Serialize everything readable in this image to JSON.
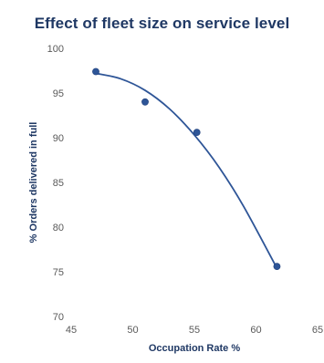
{
  "chart_data": {
    "type": "scatter",
    "title": "Effect of fleet size on service level",
    "xlabel": "Occupation Rate %",
    "ylabel": "% Orders delivered in full",
    "xlim": [
      45,
      65
    ],
    "ylim": [
      70,
      100
    ],
    "x_ticks": [
      "45",
      "50",
      "55",
      "60",
      "65"
    ],
    "y_ticks": [
      "70",
      "75",
      "80",
      "85",
      "90",
      "95",
      "100"
    ],
    "grid": false,
    "legend": "none",
    "series": [
      {
        "points": [
          {
            "x": 47.0,
            "y": 97.4
          },
          {
            "x": 51.0,
            "y": 94.0
          },
          {
            "x": 55.2,
            "y": 90.6
          },
          {
            "x": 61.7,
            "y": 75.6
          }
        ],
        "color": "#2e5597"
      }
    ],
    "trendline": {
      "kind": "polynomial",
      "color": "#2e5597",
      "points": [
        {
          "x": 47.0,
          "y": 97.2
        },
        {
          "x": 49.0,
          "y": 96.6
        },
        {
          "x": 51.0,
          "y": 95.3
        },
        {
          "x": 53.0,
          "y": 93.2
        },
        {
          "x": 55.0,
          "y": 90.3
        },
        {
          "x": 57.0,
          "y": 86.7
        },
        {
          "x": 59.0,
          "y": 82.3
        },
        {
          "x": 61.7,
          "y": 75.4
        }
      ]
    }
  }
}
